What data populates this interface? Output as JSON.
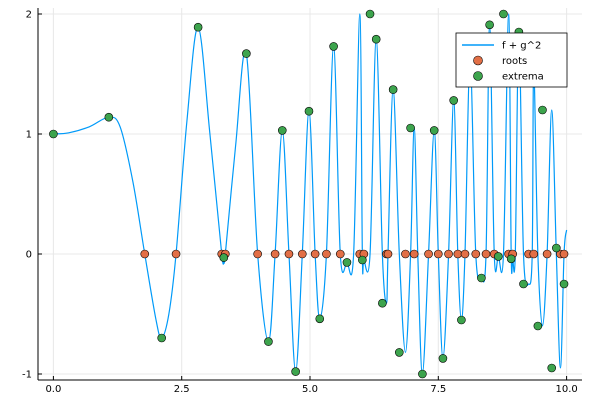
{
  "chart_data": {
    "type": "scatter",
    "title": "",
    "xlabel": "",
    "ylabel": "",
    "xlim": [
      -0.3,
      10.3
    ],
    "ylim": [
      -1.05,
      2.05
    ],
    "xticks": [
      0.0,
      2.5,
      5.0,
      7.5,
      10.0
    ],
    "xtick_labels": [
      "0.0",
      "2.5",
      "5.0",
      "7.5",
      "10.0"
    ],
    "yticks": [
      -1,
      0,
      1,
      2
    ],
    "ytick_labels": [
      "-1",
      "0",
      "1",
      "2"
    ],
    "grid": true,
    "legend_position": "top-right",
    "series": [
      {
        "name": "f + g^2",
        "kind": "line",
        "color": "#009af9",
        "x": [
          0.0,
          0.3,
          0.7,
          1.08,
          1.3,
          1.55,
          1.78,
          2.0,
          2.11,
          2.25,
          2.39,
          2.6,
          2.82,
          3.05,
          3.28,
          3.32,
          3.35,
          3.55,
          3.76,
          3.98,
          4.19,
          4.32,
          4.46,
          4.59,
          4.72,
          4.85,
          4.98,
          5.1,
          5.19,
          5.32,
          5.46,
          5.59,
          5.72,
          5.85,
          5.97,
          6.02,
          6.05,
          6.17,
          6.29,
          6.41,
          6.49,
          6.52,
          6.62,
          6.74,
          6.86,
          6.96,
          7.03,
          7.1,
          7.19,
          7.31,
          7.42,
          7.5,
          7.59,
          7.7,
          7.8,
          7.88,
          7.95,
          8.02,
          8.12,
          8.23,
          8.34,
          8.43,
          8.5,
          8.59,
          8.67,
          8.77,
          8.87,
          8.92,
          8.95,
          9.0,
          9.07,
          9.16,
          9.26,
          9.33,
          9.36,
          9.44,
          9.53,
          9.62,
          9.71,
          9.8,
          9.88,
          9.95,
          10.0
        ],
        "y": [
          1.0,
          1.01,
          1.06,
          1.14,
          1.06,
          0.6,
          0.0,
          -0.55,
          -0.7,
          -0.5,
          0.0,
          1.1,
          1.89,
          1.0,
          0.0,
          -0.03,
          0.0,
          0.9,
          1.67,
          0.0,
          -0.73,
          0.0,
          1.03,
          0.0,
          -0.98,
          0.0,
          1.19,
          0.0,
          -0.54,
          0.0,
          1.73,
          0.0,
          -0.07,
          0.0,
          2.0,
          0.0,
          -0.05,
          0.0,
          1.79,
          0.0,
          -0.41,
          0.0,
          1.37,
          0.0,
          -0.82,
          0.0,
          1.05,
          0.0,
          -1.0,
          0.0,
          1.03,
          0.0,
          -0.87,
          0.0,
          1.28,
          0.0,
          -0.55,
          0.0,
          1.62,
          0.0,
          -0.2,
          0.0,
          1.91,
          0.0,
          -0.02,
          0.0,
          2.0,
          0.0,
          -0.04,
          0.0,
          1.85,
          0.0,
          -0.25,
          0.0,
          1.55,
          0.0,
          -0.6,
          0.0,
          1.2,
          0.0,
          -0.95,
          0.0,
          0.2
        ]
      },
      {
        "name": "roots",
        "kind": "scatter",
        "color": "#e26f46",
        "x": [
          1.78,
          2.39,
          3.28,
          3.35,
          3.98,
          4.32,
          4.59,
          4.85,
          5.1,
          5.32,
          5.59,
          5.97,
          6.05,
          6.49,
          6.52,
          6.86,
          7.03,
          7.31,
          7.5,
          7.7,
          7.88,
          8.02,
          8.23,
          8.43,
          8.59,
          8.87,
          8.95,
          9.26,
          9.36,
          9.62,
          9.88,
          9.95
        ],
        "y": [
          0,
          0,
          0,
          0,
          0,
          0,
          0,
          0,
          0,
          0,
          0,
          0,
          0,
          0,
          0,
          0,
          0,
          0,
          0,
          0,
          0,
          0,
          0,
          0,
          0,
          0,
          0,
          0,
          0,
          0,
          0,
          0
        ]
      },
      {
        "name": "extrema",
        "kind": "scatter",
        "color": "#3da44d",
        "x": [
          0.0,
          1.08,
          2.11,
          2.82,
          3.32,
          3.76,
          4.19,
          4.46,
          4.72,
          4.98,
          5.19,
          5.46,
          5.72,
          6.02,
          6.17,
          6.29,
          6.41,
          6.62,
          6.74,
          6.96,
          7.19,
          7.42,
          7.59,
          7.8,
          7.95,
          8.12,
          8.34,
          8.5,
          8.67,
          8.77,
          8.92,
          9.07,
          9.16,
          9.33,
          9.44,
          9.53,
          9.71,
          9.8,
          9.95
        ],
        "y": [
          1.0,
          1.14,
          -0.7,
          1.89,
          -0.03,
          1.67,
          -0.73,
          1.03,
          -0.98,
          1.19,
          -0.54,
          1.73,
          -0.07,
          -0.05,
          2.0,
          1.79,
          -0.41,
          1.37,
          -0.82,
          1.05,
          -1.0,
          1.03,
          -0.87,
          1.28,
          -0.55,
          1.62,
          -0.2,
          1.91,
          -0.02,
          2.0,
          -0.04,
          1.85,
          -0.25,
          1.55,
          -0.6,
          1.2,
          -0.95,
          0.05,
          -0.25
        ]
      }
    ],
    "legend": [
      {
        "label": "f + g^2",
        "kind": "line",
        "color": "#009af9"
      },
      {
        "label": "roots",
        "kind": "marker",
        "color": "#e26f46"
      },
      {
        "label": "extrema",
        "kind": "marker",
        "color": "#3da44d"
      }
    ]
  }
}
